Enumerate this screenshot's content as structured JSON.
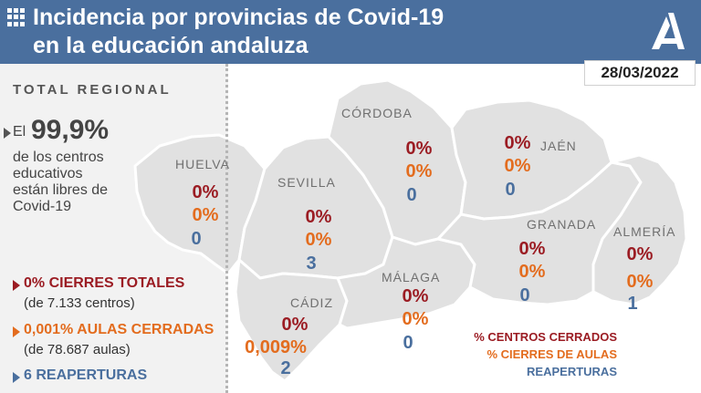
{
  "header": {
    "title_line1": "Incidencia por provincias de Covid-19",
    "title_line2": "en la educación andaluza",
    "date": "28/03/2022",
    "menu_icon": "grid-icon",
    "logo_icon": "junta-andalucia-logo",
    "color": "#4a6f9e"
  },
  "regional": {
    "title": "TOTAL REGIONAL",
    "el": "El",
    "percent": "99,9%",
    "desc": [
      "de los centros",
      "educativos",
      "están libres de",
      "Covid-19"
    ],
    "stats": [
      {
        "label": "0% CIERRES TOTALES",
        "sub": "(de 7.133 centros)",
        "color": "#9b1c23"
      },
      {
        "label": "0,001% AULAS CERRADAS",
        "sub": "(de 78.687 aulas)",
        "color": "#e36c1e"
      },
      {
        "label": "6 REAPERTURAS",
        "sub": "",
        "color": "#4a6f9e"
      }
    ]
  },
  "provinces": [
    {
      "name": "HUELVA",
      "centros": "0%",
      "aulas": "0%",
      "reaperturas": "0"
    },
    {
      "name": "SEVILLA",
      "centros": "0%",
      "aulas": "0%",
      "reaperturas": "3"
    },
    {
      "name": "CÁDIZ",
      "centros": "0%",
      "aulas": "0,009%",
      "reaperturas": "2"
    },
    {
      "name": "CÓRDOBA",
      "centros": "0%",
      "aulas": "0%",
      "reaperturas": "0"
    },
    {
      "name": "MÁLAGA",
      "centros": "0%",
      "aulas": "0%",
      "reaperturas": "0"
    },
    {
      "name": "JAÉN",
      "centros": "0%",
      "aulas": "0%",
      "reaperturas": "0"
    },
    {
      "name": "GRANADA",
      "centros": "0%",
      "aulas": "0%",
      "reaperturas": "0"
    },
    {
      "name": "ALMERÍA",
      "centros": "0%",
      "aulas": "0%",
      "reaperturas": "1"
    }
  ],
  "legend": {
    "centros": "% CENTROS CERRADOS",
    "aulas": "% CIERRES DE AULAS",
    "reaperturas": "REAPERTURAS"
  },
  "colors": {
    "centros": "#9b1c23",
    "aulas": "#e36c1e",
    "reaperturas": "#4a6f9e",
    "map_fill": "#e1e1e1",
    "panel": "#f2f2f2"
  }
}
